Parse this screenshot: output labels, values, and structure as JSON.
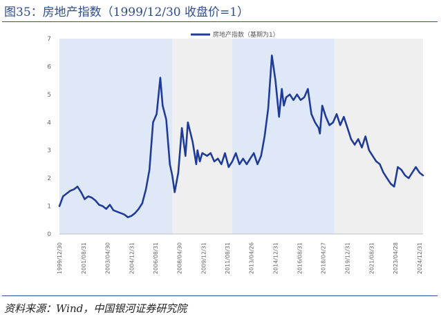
{
  "title": "图35：房地产指数（1999/12/30 收盘价=1）",
  "source": "资料来源：Wind，中国银河证券研究院",
  "colors": {
    "line": "#1f3b97",
    "shade_blue": "#dfe8f7",
    "shade_gray": "#efefef",
    "rule": "#2e4c8f"
  },
  "chart_data": {
    "type": "line",
    "series": [
      {
        "name": "房地产指数（基期为1）",
        "x": [
          "1999/12/30",
          "2000/03/31",
          "2000/06/30",
          "2000/09/30",
          "2000/12/31",
          "2001/03/31",
          "2001/06/30",
          "2001/09/30",
          "2001/12/31",
          "2002/03/31",
          "2002/06/30",
          "2002/09/30",
          "2002/12/31",
          "2003/03/31",
          "2003/06/30",
          "2003/09/30",
          "2003/12/31",
          "2004/03/31",
          "2004/06/30",
          "2004/09/30",
          "2004/12/31",
          "2005/03/31",
          "2005/06/30",
          "2005/09/30",
          "2005/12/31",
          "2006/03/31",
          "2006/06/30",
          "2006/09/30",
          "2006/12/31",
          "2007/02/28",
          "2007/05/31",
          "2007/08/31",
          "2007/10/31",
          "2007/12/31",
          "2008/03/31",
          "2008/06/30",
          "2008/09/30",
          "2008/11/30",
          "2009/03/31",
          "2009/06/30",
          "2009/07/31",
          "2009/09/30",
          "2009/11/30",
          "2010/03/31",
          "2010/06/30",
          "2010/09/30",
          "2010/12/31",
          "2011/03/31",
          "2011/06/30",
          "2011/09/30",
          "2011/12/31",
          "2012/03/31",
          "2012/06/30",
          "2012/09/30",
          "2012/12/31",
          "2013/03/31",
          "2013/06/30",
          "2013/09/30",
          "2013/12/31",
          "2014/03/31",
          "2014/06/30",
          "2014/09/30",
          "2014/12/31",
          "2015/03/31",
          "2015/06/10",
          "2015/07/31",
          "2015/09/30",
          "2015/12/31",
          "2016/03/31",
          "2016/06/30",
          "2016/09/30",
          "2016/12/31",
          "2017/03/31",
          "2017/06/30",
          "2017/09/30",
          "2017/12/31",
          "2018/01/31",
          "2018/03/31",
          "2018/06/30",
          "2018/09/30",
          "2018/12/31",
          "2019/03/31",
          "2019/06/30",
          "2019/09/30",
          "2019/12/31",
          "2020/03/31",
          "2020/06/30",
          "2020/09/30",
          "2020/12/31",
          "2021/03/31",
          "2021/06/30",
          "2021/09/30",
          "2021/12/31",
          "2022/03/31",
          "2022/06/30",
          "2022/09/30",
          "2022/12/31",
          "2023/03/31",
          "2023/06/30",
          "2023/09/30",
          "2023/12/31",
          "2024/03/31",
          "2024/06/30",
          "2024/09/30",
          "2024/12/31",
          "2025/03/31"
        ],
        "values": [
          1.0,
          1.35,
          1.45,
          1.55,
          1.6,
          1.7,
          1.5,
          1.25,
          1.35,
          1.3,
          1.2,
          1.05,
          1.0,
          0.9,
          1.05,
          0.85,
          0.8,
          0.75,
          0.7,
          0.6,
          0.65,
          0.75,
          0.9,
          1.1,
          1.6,
          2.3,
          4.0,
          4.3,
          5.6,
          4.6,
          4.1,
          2.5,
          2.1,
          1.5,
          2.2,
          3.8,
          2.8,
          4.0,
          3.3,
          2.5,
          3.0,
          2.6,
          2.9,
          2.8,
          2.9,
          2.6,
          2.7,
          2.5,
          2.9,
          2.4,
          2.6,
          2.9,
          2.5,
          2.7,
          2.5,
          2.7,
          2.9,
          2.5,
          2.8,
          3.5,
          4.5,
          6.4,
          5.5,
          4.2,
          5.2,
          4.6,
          4.9,
          5.0,
          4.8,
          5.0,
          4.8,
          4.9,
          5.2,
          4.3,
          4.0,
          3.8,
          3.6,
          4.6,
          4.2,
          3.9,
          4.0,
          4.3,
          3.9,
          4.2,
          3.8,
          3.4,
          3.2,
          3.4,
          3.1,
          3.5,
          3.0,
          2.8,
          2.6,
          2.5,
          2.2,
          2.0,
          1.8,
          1.7,
          2.4,
          2.3,
          2.1,
          2.0,
          2.2,
          2.4,
          2.2,
          2.1
        ]
      }
    ],
    "x_ticks": [
      "1999/12/30",
      "2001/08/31",
      "2003/04/30",
      "2004/12/31",
      "2006/08/31",
      "2008/04/30",
      "2009/12/31",
      "2011/08/31",
      "2013/04/26",
      "2014/12/31",
      "2016/08/31",
      "2018/04/27",
      "2019/12/31",
      "2021/08/31",
      "2023/04/28",
      "2024/12/31"
    ],
    "ylim": [
      0,
      7
    ],
    "y_ticks": [
      0,
      1,
      2,
      3,
      4,
      5,
      6,
      7
    ],
    "shaded_periods": [
      {
        "start": "1999/12/30",
        "end": "2007/10/31",
        "color": "blue"
      },
      {
        "start": "2007/10/31",
        "end": "2011/12/31",
        "color": "gray"
      },
      {
        "start": "2011/12/31",
        "end": "2019/01/31",
        "color": "blue"
      },
      {
        "start": "2019/01/31",
        "end": "2025/03/31",
        "color": "gray"
      }
    ],
    "legend_position": "top-center",
    "grid": false
  }
}
